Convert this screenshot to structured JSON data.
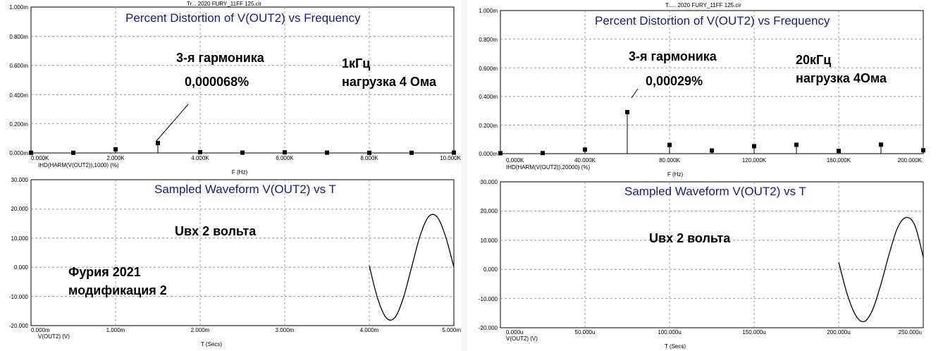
{
  "panels": [
    {
      "file_title": "Tr... 2020 FURY_11FF 125.cir",
      "distortion": {
        "title": "Percent Distortion of V(OUT2) vs Frequency",
        "trace_label": "IHD(HARM(V(OUT2)),1000) (%)",
        "xlabel": "F (Hz)",
        "yticks": [
          "0.000m",
          "0.200m",
          "0.400m",
          "0.600m",
          "0.800m",
          "1.000m"
        ],
        "xticks": [
          "0.000K",
          "2.000K",
          "4.000K",
          "6.000K",
          "8.000K",
          "10.000K"
        ],
        "annotations": [
          {
            "text": "3-я гармоника"
          },
          {
            "text": "0,000068%"
          },
          {
            "text": "1кГц"
          },
          {
            "text": "нагрузка 4 Ома"
          }
        ]
      },
      "waveform": {
        "title": "Sampled Waveform  V(OUT2) vs T",
        "trace_label": "V(OUT2) (V)",
        "xlabel": "T (Secs)",
        "yticks": [
          "-20.000",
          "-10.000",
          "0.000",
          "10.000",
          "20.000",
          "30.000"
        ],
        "xticks": [
          "0.000m",
          "1.000m",
          "2.000m",
          "3.000m",
          "4.000m",
          "5.000m"
        ],
        "annotations": [
          {
            "text": "Uвх 2 вольта"
          },
          {
            "text": "Фурия 2021"
          },
          {
            "text": "модификация 2"
          }
        ]
      }
    },
    {
      "file_title": "T:.... 2020 FURY_11FF 125.cir",
      "distortion": {
        "title": "Percent Distortion of V(OUT2) vs Frequency",
        "trace_label": "IHD(HARM(V(OUT2)),20000) (%)",
        "xlabel": "F (Hz)",
        "yticks": [
          "0.000m",
          "0.200m",
          "0.400m",
          "0.600m",
          "0.800m",
          "1.000m"
        ],
        "xticks": [
          "0.000K",
          "40.000K",
          "80.000K",
          "120.000K",
          "160.000K",
          "200.000K"
        ],
        "annotations": [
          {
            "text": "3-я гармоника"
          },
          {
            "text": "0,00029%"
          },
          {
            "text": "20кГц"
          },
          {
            "text": "нагрузка 4Ома"
          }
        ]
      },
      "waveform": {
        "title": "Sampled Waveform  V(OUT2) vs T",
        "trace_label": "V(OUT2) (V)",
        "xlabel": "T (Secs)",
        "yticks": [
          "-20.000",
          "-10.000",
          "0.000",
          "10.000",
          "20.000",
          "30.000"
        ],
        "xticks": [
          "0.000u",
          "50.000u",
          "100.000u",
          "150.000u",
          "200.000u",
          "250.000u"
        ],
        "annotations": [
          {
            "text": "Uвх 2 вольта"
          }
        ]
      }
    }
  ],
  "chart_data": [
    {
      "type": "scatter",
      "title": "Percent Distortion of V(OUT2) vs Frequency",
      "xlabel": "F (Hz)",
      "ylabel": "IHD(HARM(V(OUT2)),1000) (%)",
      "x_unit": "Hz",
      "y_unit": "%",
      "xlim": [
        0,
        10000
      ],
      "ylim": [
        0,
        0.001
      ],
      "grid": true,
      "series": [
        {
          "name": "IHD(HARM(V(OUT2)),1000) (%)",
          "x": [
            0,
            1000,
            2000,
            3000,
            4000,
            5000,
            6000,
            7000,
            8000,
            9000,
            10000
          ],
          "y": [
            1e-06,
            1e-06,
            2.5e-05,
            6.8e-05,
            6e-06,
            2e-06,
            4e-06,
            2e-06,
            1e-06,
            1e-06,
            2e-06
          ]
        }
      ]
    },
    {
      "type": "line",
      "title": "Sampled Waveform  V(OUT2) vs T",
      "xlabel": "T (Secs)",
      "ylabel": "V(OUT2) (V)",
      "x_unit": "s",
      "y_unit": "V",
      "xlim": [
        0,
        0.005
      ],
      "ylim": [
        -20,
        30
      ],
      "grid": true,
      "series": [
        {
          "name": "V(OUT2) (V)",
          "x": [
            0.004,
            0.0041,
            0.0042,
            0.0043,
            0.0044,
            0.0045,
            0.0046,
            0.0047,
            0.0048,
            0.0049,
            0.005
          ],
          "y": [
            0.5,
            -10.8,
            -17.3,
            -17.3,
            -10.7,
            0.0,
            10.7,
            17.3,
            17.3,
            10.7,
            0.0
          ]
        }
      ]
    },
    {
      "type": "scatter",
      "title": "Percent Distortion of V(OUT2) vs Frequency",
      "xlabel": "F (Hz)",
      "ylabel": "IHD(HARM(V(OUT2)),20000) (%)",
      "x_unit": "Hz",
      "y_unit": "%",
      "xlim": [
        0,
        200000
      ],
      "ylim": [
        0,
        0.001
      ],
      "grid": true,
      "series": [
        {
          "name": "IHD(HARM(V(OUT2)),20000) (%)",
          "x": [
            0,
            20000,
            40000,
            60000,
            80000,
            100000,
            120000,
            140000,
            160000,
            180000,
            200000
          ],
          "y": [
            3e-06,
            4e-06,
            2.8e-05,
            0.00029,
            6.1e-05,
            2.2e-05,
            5.2e-05,
            6.2e-05,
            1.9e-05,
            6.3e-05,
            2.3e-05
          ]
        }
      ]
    },
    {
      "type": "line",
      "title": "Sampled Waveform  V(OUT2) vs T",
      "xlabel": "T (Secs)",
      "ylabel": "V(OUT2) (V)",
      "x_unit": "s",
      "y_unit": "V",
      "xlim": [
        0,
        0.00025
      ],
      "ylim": [
        -20,
        30
      ],
      "grid": true,
      "series": [
        {
          "name": "V(OUT2) (V)",
          "x": [
            0.0002,
            0.000205,
            0.00021,
            0.000215,
            0.00022,
            0.000225,
            0.00023,
            0.000235,
            0.00024,
            0.000245,
            0.00025
          ],
          "y": [
            2.5,
            -8.4,
            -15.7,
            -17.9,
            -13.9,
            -5.0,
            5.6,
            14.5,
            17.8,
            15.1,
            4.2
          ]
        }
      ]
    }
  ]
}
